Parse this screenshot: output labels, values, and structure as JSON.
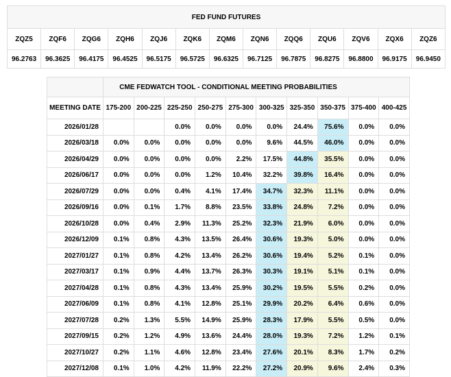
{
  "colors": {
    "title_background": "#f7f7f7",
    "border_outer": "#c6c6c6",
    "border_inner": "#dddddd",
    "highlight_max_probability": "#c8edf7",
    "highlight_secondary": "#f6f6dc",
    "text": "#000000",
    "page_background": "#ffffff"
  },
  "futures": {
    "title": "FED FUND FUTURES",
    "columns": [
      "ZQZ5",
      "ZQF6",
      "ZQG6",
      "ZQH6",
      "ZQJ6",
      "ZQK6",
      "ZQM6",
      "ZQN6",
      "ZQQ6",
      "ZQU6",
      "ZQV6",
      "ZQX6",
      "ZQZ6"
    ],
    "values": [
      "96.2763",
      "96.3625",
      "96.4175",
      "96.4525",
      "96.5175",
      "96.5725",
      "96.6325",
      "96.7125",
      "96.7875",
      "96.8275",
      "96.8800",
      "96.9175",
      "96.9450"
    ]
  },
  "fedwatch": {
    "title": "CME FEDWATCH TOOL - CONDITIONAL MEETING PROBABILITIES",
    "date_column_header": "MEETING DATE",
    "rate_column_headers": [
      "175-200",
      "200-225",
      "225-250",
      "250-275",
      "275-300",
      "300-325",
      "325-350",
      "350-375",
      "375-400",
      "400-425"
    ],
    "rows": [
      {
        "date": "2026/01/28",
        "cells": [
          "",
          "",
          "0.0%",
          "0.0%",
          "0.0%",
          "0.0%",
          "24.4%",
          "75.6%",
          "0.0%",
          "0.0%"
        ],
        "hl": [
          "",
          "",
          "",
          "",
          "",
          "",
          "",
          "max",
          "",
          ""
        ]
      },
      {
        "date": "2026/03/18",
        "cells": [
          "0.0%",
          "0.0%",
          "0.0%",
          "0.0%",
          "0.0%",
          "9.6%",
          "44.5%",
          "46.0%",
          "0.0%",
          "0.0%"
        ],
        "hl": [
          "",
          "",
          "",
          "",
          "",
          "",
          "",
          "max",
          "",
          ""
        ]
      },
      {
        "date": "2026/04/29",
        "cells": [
          "0.0%",
          "0.0%",
          "0.0%",
          "0.0%",
          "2.2%",
          "17.5%",
          "44.8%",
          "35.5%",
          "0.0%",
          "0.0%"
        ],
        "hl": [
          "",
          "",
          "",
          "",
          "",
          "",
          "max",
          "near",
          "",
          ""
        ]
      },
      {
        "date": "2026/06/17",
        "cells": [
          "0.0%",
          "0.0%",
          "0.0%",
          "1.2%",
          "10.4%",
          "32.2%",
          "39.8%",
          "16.4%",
          "0.0%",
          "0.0%"
        ],
        "hl": [
          "",
          "",
          "",
          "",
          "",
          "",
          "max",
          "near",
          "",
          ""
        ]
      },
      {
        "date": "2026/07/29",
        "cells": [
          "0.0%",
          "0.0%",
          "0.4%",
          "4.1%",
          "17.4%",
          "34.7%",
          "32.3%",
          "11.1%",
          "0.0%",
          "0.0%"
        ],
        "hl": [
          "",
          "",
          "",
          "",
          "",
          "max",
          "near",
          "near",
          "",
          ""
        ]
      },
      {
        "date": "2026/09/16",
        "cells": [
          "0.0%",
          "0.1%",
          "1.7%",
          "8.8%",
          "23.5%",
          "33.8%",
          "24.8%",
          "7.2%",
          "0.0%",
          "0.0%"
        ],
        "hl": [
          "",
          "",
          "",
          "",
          "",
          "max",
          "near",
          "near",
          "",
          ""
        ]
      },
      {
        "date": "2026/10/28",
        "cells": [
          "0.0%",
          "0.4%",
          "2.9%",
          "11.3%",
          "25.2%",
          "32.3%",
          "21.9%",
          "6.0%",
          "0.0%",
          "0.0%"
        ],
        "hl": [
          "",
          "",
          "",
          "",
          "",
          "max",
          "near",
          "near",
          "",
          ""
        ]
      },
      {
        "date": "2026/12/09",
        "cells": [
          "0.1%",
          "0.8%",
          "4.3%",
          "13.5%",
          "26.4%",
          "30.6%",
          "19.3%",
          "5.0%",
          "0.0%",
          "0.0%"
        ],
        "hl": [
          "",
          "",
          "",
          "",
          "",
          "max",
          "near",
          "near",
          "",
          ""
        ]
      },
      {
        "date": "2027/01/27",
        "cells": [
          "0.1%",
          "0.8%",
          "4.2%",
          "13.4%",
          "26.2%",
          "30.6%",
          "19.4%",
          "5.2%",
          "0.1%",
          "0.0%"
        ],
        "hl": [
          "",
          "",
          "",
          "",
          "",
          "max",
          "near",
          "near",
          "",
          ""
        ]
      },
      {
        "date": "2027/03/17",
        "cells": [
          "0.1%",
          "0.9%",
          "4.4%",
          "13.7%",
          "26.3%",
          "30.3%",
          "19.1%",
          "5.1%",
          "0.1%",
          "0.0%"
        ],
        "hl": [
          "",
          "",
          "",
          "",
          "",
          "max",
          "near",
          "near",
          "",
          ""
        ]
      },
      {
        "date": "2027/04/28",
        "cells": [
          "0.1%",
          "0.8%",
          "4.3%",
          "13.4%",
          "25.9%",
          "30.2%",
          "19.5%",
          "5.5%",
          "0.2%",
          "0.0%"
        ],
        "hl": [
          "",
          "",
          "",
          "",
          "",
          "max",
          "near",
          "near",
          "",
          ""
        ]
      },
      {
        "date": "2027/06/09",
        "cells": [
          "0.1%",
          "0.8%",
          "4.1%",
          "12.8%",
          "25.1%",
          "29.9%",
          "20.2%",
          "6.4%",
          "0.6%",
          "0.0%"
        ],
        "hl": [
          "",
          "",
          "",
          "",
          "",
          "max",
          "near",
          "near",
          "",
          ""
        ]
      },
      {
        "date": "2027/07/28",
        "cells": [
          "0.2%",
          "1.3%",
          "5.5%",
          "14.9%",
          "25.9%",
          "28.3%",
          "17.9%",
          "5.5%",
          "0.5%",
          "0.0%"
        ],
        "hl": [
          "",
          "",
          "",
          "",
          "",
          "max",
          "near",
          "near",
          "",
          ""
        ]
      },
      {
        "date": "2027/09/15",
        "cells": [
          "0.2%",
          "1.2%",
          "4.9%",
          "13.6%",
          "24.4%",
          "28.0%",
          "19.3%",
          "7.2%",
          "1.2%",
          "0.1%"
        ],
        "hl": [
          "",
          "",
          "",
          "",
          "",
          "max",
          "near",
          "near",
          "",
          ""
        ]
      },
      {
        "date": "2027/10/27",
        "cells": [
          "0.2%",
          "1.1%",
          "4.6%",
          "12.8%",
          "23.4%",
          "27.6%",
          "20.1%",
          "8.3%",
          "1.7%",
          "0.2%"
        ],
        "hl": [
          "",
          "",
          "",
          "",
          "",
          "max",
          "near",
          "near",
          "",
          ""
        ]
      },
      {
        "date": "2027/12/08",
        "cells": [
          "0.1%",
          "1.0%",
          "4.2%",
          "11.9%",
          "22.2%",
          "27.2%",
          "20.9%",
          "9.6%",
          "2.4%",
          "0.3%"
        ],
        "hl": [
          "",
          "",
          "",
          "",
          "",
          "max",
          "near",
          "near",
          "",
          ""
        ]
      }
    ]
  }
}
